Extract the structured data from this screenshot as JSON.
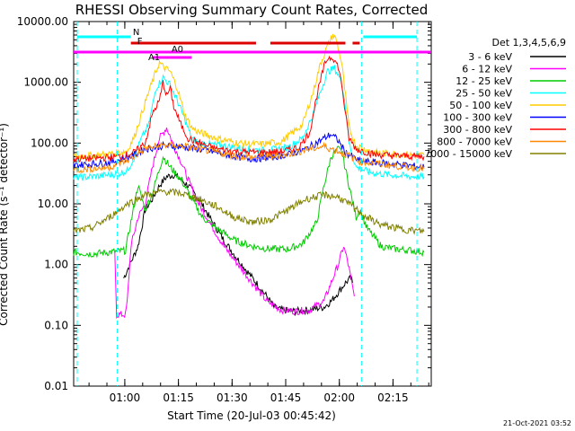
{
  "chart_data": {
    "type": "line",
    "title": "RHESSI Observing Summary Count Rates, Corrected",
    "xlabel": "Start Time (20-Jul-03 00:45:42)",
    "ylabel": "Corrected Count Rate (s⁻¹ detector⁻¹)",
    "y_scale": "log",
    "ylim": [
      0.01,
      10000
    ],
    "xlim_minutes_after_start": [
      0,
      100
    ],
    "x_ticks": [
      "01:00",
      "01:15",
      "01:30",
      "01:45",
      "02:00",
      "02:15"
    ],
    "y_ticks": [
      "0.01",
      "0.10",
      "1.00",
      "10.00",
      "100.00",
      "1000.00",
      "10000.00"
    ],
    "legend_header": "Det 1,3,4,5,6,9",
    "grid": false,
    "legend_position": "right",
    "timestamp": "21-Oct-2021 03:52",
    "flag_labels": [
      "N",
      "F",
      "A0",
      "A1"
    ],
    "series": [
      {
        "name": "3 - 6 keV",
        "color": "#000000",
        "points": [
          [
            14,
            0.6
          ],
          [
            18,
            2
          ],
          [
            20,
            8
          ],
          [
            22,
            12
          ],
          [
            24,
            20
          ],
          [
            26,
            28
          ],
          [
            28,
            30
          ],
          [
            30,
            25
          ],
          [
            32,
            20
          ],
          [
            35,
            12
          ],
          [
            38,
            6
          ],
          [
            42,
            2.5
          ],
          [
            46,
            1.2
          ],
          [
            50,
            0.6
          ],
          [
            54,
            0.3
          ],
          [
            56,
            0.2
          ],
          [
            58,
            0.18
          ],
          [
            62,
            0.17
          ],
          [
            66,
            0.18
          ],
          [
            70,
            0.2
          ],
          [
            72,
            0.25
          ],
          [
            74,
            0.35
          ],
          [
            76,
            0.5
          ],
          [
            77.5,
            0.6
          ],
          [
            78,
            0.5
          ]
        ]
      },
      {
        "name": "6 - 12 keV",
        "color": "#ff00ff",
        "points": [
          [
            11.5,
            1.5
          ],
          [
            12,
            0.15
          ],
          [
            14.5,
            0.15
          ],
          [
            15,
            0.25
          ],
          [
            16,
            2
          ],
          [
            18,
            6
          ],
          [
            20,
            10
          ],
          [
            22,
            40
          ],
          [
            24,
            120
          ],
          [
            26,
            180
          ],
          [
            28,
            90
          ],
          [
            30,
            50
          ],
          [
            32,
            25
          ],
          [
            35,
            10
          ],
          [
            38,
            5
          ],
          [
            42,
            2
          ],
          [
            46,
            1
          ],
          [
            50,
            0.5
          ],
          [
            54,
            0.25
          ],
          [
            58,
            0.18
          ],
          [
            62,
            0.17
          ],
          [
            66,
            0.18
          ],
          [
            70,
            0.25
          ],
          [
            72,
            0.5
          ],
          [
            74,
            1
          ],
          [
            75.5,
            2
          ],
          [
            76.5,
            1.2
          ],
          [
            77.5,
            0.6
          ],
          [
            78.5,
            0.3
          ]
        ]
      },
      {
        "name": "12 - 25 keV",
        "color": "#00cc00",
        "points": [
          [
            0,
            1.6
          ],
          [
            5,
            1.5
          ],
          [
            10,
            1.6
          ],
          [
            14.5,
            1.7
          ],
          [
            16,
            5
          ],
          [
            18,
            20
          ],
          [
            20,
            8
          ],
          [
            22,
            15
          ],
          [
            25,
            60
          ],
          [
            27,
            40
          ],
          [
            29,
            30
          ],
          [
            31,
            20
          ],
          [
            33,
            12
          ],
          [
            36,
            6
          ],
          [
            40,
            4
          ],
          [
            45,
            2.5
          ],
          [
            50,
            2
          ],
          [
            55,
            1.8
          ],
          [
            60,
            1.8
          ],
          [
            64,
            2.2
          ],
          [
            68,
            5
          ],
          [
            70,
            20
          ],
          [
            72,
            60
          ],
          [
            74,
            80
          ],
          [
            75,
            70
          ],
          [
            77,
            20
          ],
          [
            79,
            6
          ],
          [
            80,
            8
          ],
          [
            82,
            4
          ],
          [
            86,
            2
          ],
          [
            90,
            1.8
          ],
          [
            95,
            1.7
          ],
          [
            98,
            1.6
          ]
        ]
      },
      {
        "name": "25 - 50 keV",
        "color": "#00ffff",
        "points": [
          [
            0,
            27
          ],
          [
            5,
            28
          ],
          [
            10,
            30
          ],
          [
            13,
            32
          ],
          [
            15,
            35
          ],
          [
            17,
            60
          ],
          [
            19,
            120
          ],
          [
            21,
            200
          ],
          [
            23,
            800
          ],
          [
            25,
            1200
          ],
          [
            27,
            900
          ],
          [
            29,
            500
          ],
          [
            31,
            250
          ],
          [
            33,
            120
          ],
          [
            35,
            100
          ],
          [
            38,
            95
          ],
          [
            42,
            90
          ],
          [
            48,
            80
          ],
          [
            54,
            75
          ],
          [
            60,
            85
          ],
          [
            64,
            120
          ],
          [
            67,
            300
          ],
          [
            69,
            700
          ],
          [
            71,
            1500
          ],
          [
            73,
            1700
          ],
          [
            75,
            1000
          ],
          [
            76,
            400
          ],
          [
            77,
            100
          ],
          [
            79,
            40
          ],
          [
            83,
            33
          ],
          [
            88,
            30
          ],
          [
            95,
            28
          ],
          [
            98,
            28
          ]
        ]
      },
      {
        "name": "50 - 100 keV",
        "color": "#ffcc00",
        "points": [
          [
            0,
            60
          ],
          [
            5,
            62
          ],
          [
            10,
            66
          ],
          [
            13,
            70
          ],
          [
            15,
            75
          ],
          [
            17,
            130
          ],
          [
            19,
            300
          ],
          [
            21,
            700
          ],
          [
            23,
            1500
          ],
          [
            24,
            2100
          ],
          [
            25,
            1800
          ],
          [
            27,
            1500
          ],
          [
            29,
            800
          ],
          [
            31,
            300
          ],
          [
            33,
            180
          ],
          [
            35,
            150
          ],
          [
            40,
            120
          ],
          [
            46,
            100
          ],
          [
            52,
            95
          ],
          [
            58,
            105
          ],
          [
            64,
            200
          ],
          [
            67,
            700
          ],
          [
            69,
            2000
          ],
          [
            71,
            4000
          ],
          [
            72.5,
            6000
          ],
          [
            73.5,
            5000
          ],
          [
            75,
            2000
          ],
          [
            76,
            600
          ],
          [
            77,
            180
          ],
          [
            79,
            90
          ],
          [
            84,
            70
          ],
          [
            90,
            66
          ],
          [
            98,
            63
          ]
        ]
      },
      {
        "name": "100 - 300 keV",
        "color": "#0000ff",
        "points": [
          [
            0,
            43
          ],
          [
            10,
            48
          ],
          [
            16,
            60
          ],
          [
            20,
            80
          ],
          [
            25,
            90
          ],
          [
            30,
            88
          ],
          [
            35,
            80
          ],
          [
            40,
            70
          ],
          [
            45,
            60
          ],
          [
            50,
            55
          ],
          [
            55,
            58
          ],
          [
            60,
            65
          ],
          [
            65,
            80
          ],
          [
            70,
            120
          ],
          [
            72,
            140
          ],
          [
            74,
            110
          ],
          [
            76,
            70
          ],
          [
            80,
            50
          ],
          [
            90,
            45
          ],
          [
            98,
            40
          ]
        ]
      },
      {
        "name": "300 - 800 keV",
        "color": "#ff0000",
        "points": [
          [
            0,
            55
          ],
          [
            5,
            56
          ],
          [
            10,
            58
          ],
          [
            14,
            62
          ],
          [
            17,
            70
          ],
          [
            20,
            100
          ],
          [
            22,
            300
          ],
          [
            24,
            500
          ],
          [
            25,
            1000
          ],
          [
            26,
            600
          ],
          [
            27,
            800
          ],
          [
            28,
            400
          ],
          [
            30,
            200
          ],
          [
            32,
            120
          ],
          [
            35,
            100
          ],
          [
            40,
            80
          ],
          [
            46,
            72
          ],
          [
            52,
            70
          ],
          [
            58,
            72
          ],
          [
            63,
            85
          ],
          [
            66,
            150
          ],
          [
            68,
            600
          ],
          [
            70,
            1800
          ],
          [
            71,
            2500
          ],
          [
            72.5,
            2600
          ],
          [
            74,
            1800
          ],
          [
            75,
            900
          ],
          [
            76,
            300
          ],
          [
            77,
            120
          ],
          [
            79,
            80
          ],
          [
            84,
            65
          ],
          [
            90,
            62
          ],
          [
            98,
            60
          ]
        ]
      },
      {
        "name": "800 - 7000 keV",
        "color": "#ff8800",
        "points": [
          [
            0,
            36
          ],
          [
            10,
            40
          ],
          [
            16,
            55
          ],
          [
            20,
            80
          ],
          [
            25,
            92
          ],
          [
            30,
            90
          ],
          [
            35,
            80
          ],
          [
            40,
            70
          ],
          [
            45,
            62
          ],
          [
            50,
            58
          ],
          [
            55,
            60
          ],
          [
            60,
            65
          ],
          [
            65,
            78
          ],
          [
            70,
            88
          ],
          [
            75,
            70
          ],
          [
            80,
            50
          ],
          [
            90,
            42
          ],
          [
            98,
            38
          ]
        ]
      },
      {
        "name": "7000 - 15000 keV",
        "color": "#808000",
        "points": [
          [
            0,
            3.5
          ],
          [
            5,
            4
          ],
          [
            10,
            6
          ],
          [
            15,
            10
          ],
          [
            20,
            14
          ],
          [
            25,
            16
          ],
          [
            30,
            15
          ],
          [
            35,
            12
          ],
          [
            40,
            9
          ],
          [
            45,
            6
          ],
          [
            50,
            5
          ],
          [
            55,
            5.5
          ],
          [
            60,
            8
          ],
          [
            65,
            12
          ],
          [
            70,
            14
          ],
          [
            74,
            13
          ],
          [
            78,
            9
          ],
          [
            82,
            6
          ],
          [
            86,
            4.5
          ],
          [
            92,
            3.8
          ],
          [
            98,
            3.5
          ]
        ]
      }
    ]
  }
}
